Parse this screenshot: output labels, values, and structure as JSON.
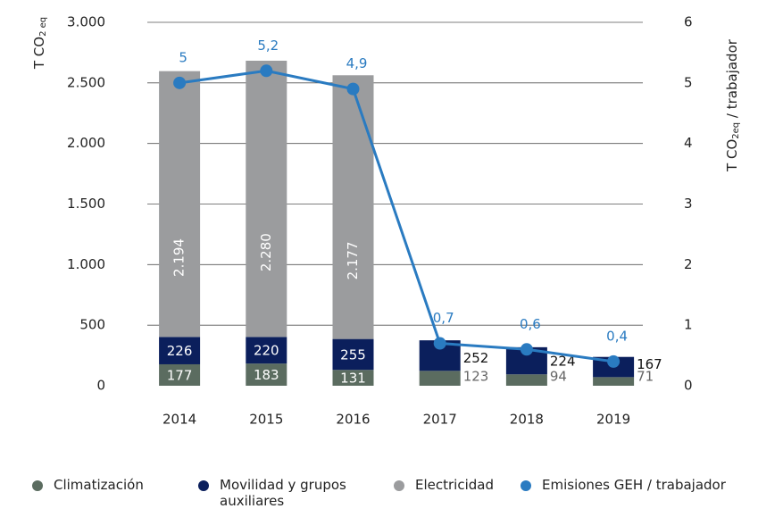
{
  "chart_data": {
    "type": "bar_line",
    "y_label": {
      "text": "T CO",
      "subscript": "2 eq"
    },
    "y2_label": {
      "text": "T CO",
      "subscript": "2eq",
      "suffix": " / trabajador"
    },
    "categories": [
      "2014",
      "2015",
      "2016",
      "2017",
      "2018",
      "2019"
    ],
    "series": [
      {
        "name": "Climatización",
        "color": "#5b6c60",
        "values": [
          177,
          183,
          131,
          123,
          94,
          71
        ]
      },
      {
        "name": "Movilidad y grupos auxiliares",
        "color": "#0b1f5c",
        "values": [
          226,
          220,
          255,
          252,
          224,
          167
        ]
      },
      {
        "name": "Electricidad",
        "color": "#9b9c9e",
        "values": [
          2194,
          2280,
          2177,
          null,
          null,
          null
        ],
        "value_labels": [
          "2.194",
          "2.280",
          "2.177",
          null,
          null,
          null
        ]
      },
      {
        "name": "Emisiones GEH / trabajador",
        "color": "#2a7bc1",
        "axis": "y2",
        "type": "line",
        "values": [
          5,
          5.2,
          4.9,
          0.7,
          0.6,
          0.4
        ],
        "value_labels": [
          "5",
          "5,2",
          "4,9",
          "0,7",
          "0,6",
          "0,4"
        ]
      }
    ],
    "ylim": [
      0,
      3000
    ],
    "yticks": [
      0,
      500,
      {
        "value": 1000,
        "label": "1.000"
      },
      {
        "value": 1500,
        "label": "1.500"
      },
      {
        "value": 2000,
        "label": "2.000"
      },
      {
        "value": 2500,
        "label": "2.500"
      },
      {
        "value": 3000,
        "label": "3.000"
      }
    ],
    "y2lim": [
      0,
      6
    ],
    "y2ticks": [
      0,
      1,
      2,
      3,
      4,
      5,
      6
    ],
    "grid": true,
    "legend": "bottom"
  }
}
